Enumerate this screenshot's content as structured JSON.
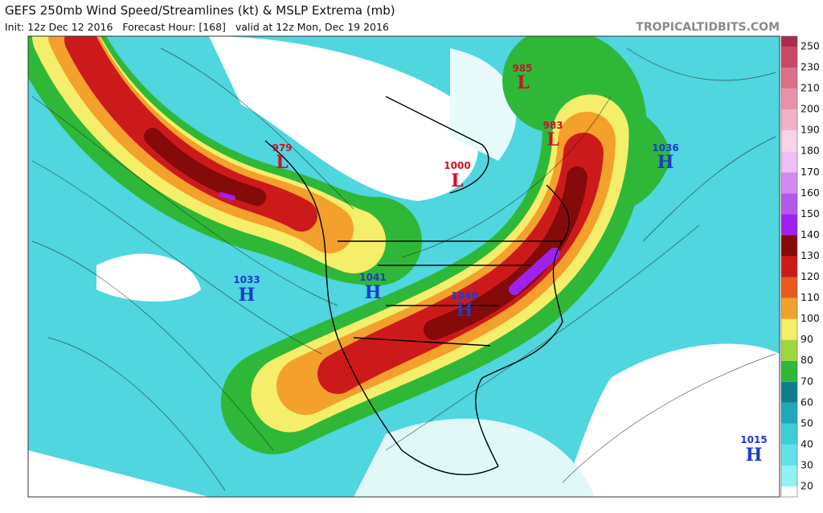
{
  "header": {
    "title": "GEFS 250mb Wind Speed/Streamlines (kt) & MSLP Extrema (mb)",
    "subtitle": "Init: 12z Dec 12 2016   Forecast Hour: [168]   valid at 12z Mon, Dec 19 2016",
    "credit": "TROPICALTIDBITS.COM"
  },
  "legend": {
    "ticks": [
      20,
      30,
      40,
      50,
      60,
      70,
      80,
      90,
      100,
      110,
      120,
      130,
      140,
      150,
      160,
      170,
      180,
      190,
      200,
      210,
      230,
      250
    ],
    "colors": [
      "#8ff3f3",
      "#5fe2e8",
      "#3ccfd8",
      "#1fa8ba",
      "#0d7f8c",
      "#2fb838",
      "#9fd83e",
      "#f5ee6a",
      "#f3a02c",
      "#e55c1e",
      "#cc1a1a",
      "#850a0a",
      "#a020f0",
      "#b458ea",
      "#d28af0",
      "#efbff5",
      "#f8d4ea",
      "#f2b2c8",
      "#e892aa",
      "#dc7088",
      "#c84868",
      "#b02850"
    ]
  },
  "extrema": [
    {
      "symbol": "L",
      "pressure": 985
    },
    {
      "symbol": "L",
      "pressure": 983
    },
    {
      "symbol": "L",
      "pressure": 979
    },
    {
      "symbol": "L",
      "pressure": 1000
    },
    {
      "symbol": "H",
      "pressure": 1036
    },
    {
      "symbol": "H",
      "pressure": 1033
    },
    {
      "symbol": "H",
      "pressure": 1041
    },
    {
      "symbol": "H",
      "pressure": 1040
    },
    {
      "symbol": "H",
      "pressure": 1015
    }
  ]
}
